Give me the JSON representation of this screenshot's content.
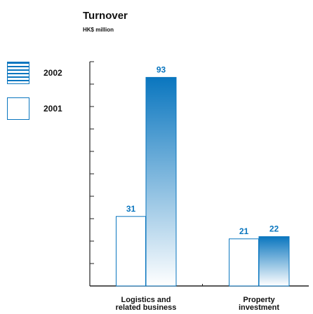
{
  "chart_data": {
    "type": "bar",
    "title": "Turnover",
    "subtitle": "HK$ million",
    "categories": [
      [
        "Logistics and",
        "related business"
      ],
      [
        "Property",
        "investment"
      ]
    ],
    "series": [
      {
        "name": "2001",
        "values": [
          31,
          21
        ],
        "style": "outline"
      },
      {
        "name": "2002",
        "values": [
          93,
          22
        ],
        "style": "gradient"
      }
    ],
    "ylim": [
      0,
      100
    ],
    "ytick_step": 10,
    "y_tick_labels_shown": false,
    "legend_position": "left",
    "grid": false
  },
  "legend": [
    {
      "label": "2002",
      "icon": "striped-swatch-icon"
    },
    {
      "label": "2001",
      "icon": "outline-swatch-icon"
    }
  ],
  "colors": {
    "accent": "#0a76bf",
    "gradient_dark": "#0a76bf",
    "gradient_light": "#ffffff",
    "axis": "#222222",
    "text": "#111111"
  }
}
